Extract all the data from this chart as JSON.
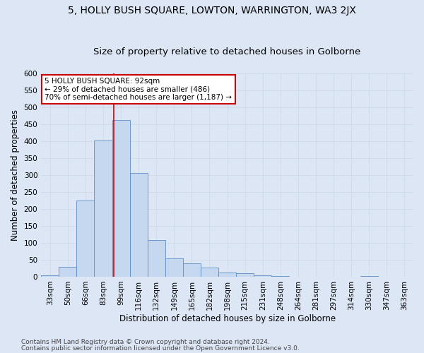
{
  "title": "5, HOLLY BUSH SQUARE, LOWTON, WARRINGTON, WA3 2JX",
  "subtitle": "Size of property relative to detached houses in Golborne",
  "xlabel": "Distribution of detached houses by size in Golborne",
  "ylabel": "Number of detached properties",
  "categories": [
    "33sqm",
    "50sqm",
    "66sqm",
    "83sqm",
    "99sqm",
    "116sqm",
    "132sqm",
    "149sqm",
    "165sqm",
    "182sqm",
    "198sqm",
    "215sqm",
    "231sqm",
    "248sqm",
    "264sqm",
    "281sqm",
    "297sqm",
    "314sqm",
    "330sqm",
    "347sqm",
    "363sqm"
  ],
  "values": [
    5,
    30,
    226,
    402,
    463,
    307,
    108,
    55,
    40,
    27,
    13,
    11,
    4,
    2,
    0,
    0,
    0,
    0,
    3,
    0,
    0
  ],
  "bar_color": "#c5d8f0",
  "bar_edge_color": "#5b8fc9",
  "grid_color": "#d0dcea",
  "background_color": "#dce6f5",
  "plot_bg_color": "#dce6f5",
  "vline_color": "#cc0000",
  "vline_x": 3.58,
  "annotation_text": "5 HOLLY BUSH SQUARE: 92sqm\n← 29% of detached houses are smaller (486)\n70% of semi-detached houses are larger (1,187) →",
  "annotation_box_color": "#ffffff",
  "annotation_border_color": "#cc0000",
  "ylim": [
    0,
    600
  ],
  "yticks": [
    0,
    50,
    100,
    150,
    200,
    250,
    300,
    350,
    400,
    450,
    500,
    550,
    600
  ],
  "footer1": "Contains HM Land Registry data © Crown copyright and database right 2024.",
  "footer2": "Contains public sector information licensed under the Open Government Licence v3.0.",
  "title_fontsize": 10,
  "subtitle_fontsize": 9.5,
  "label_fontsize": 8.5,
  "tick_fontsize": 7.5,
  "annotation_fontsize": 7.5,
  "footer_fontsize": 6.5
}
